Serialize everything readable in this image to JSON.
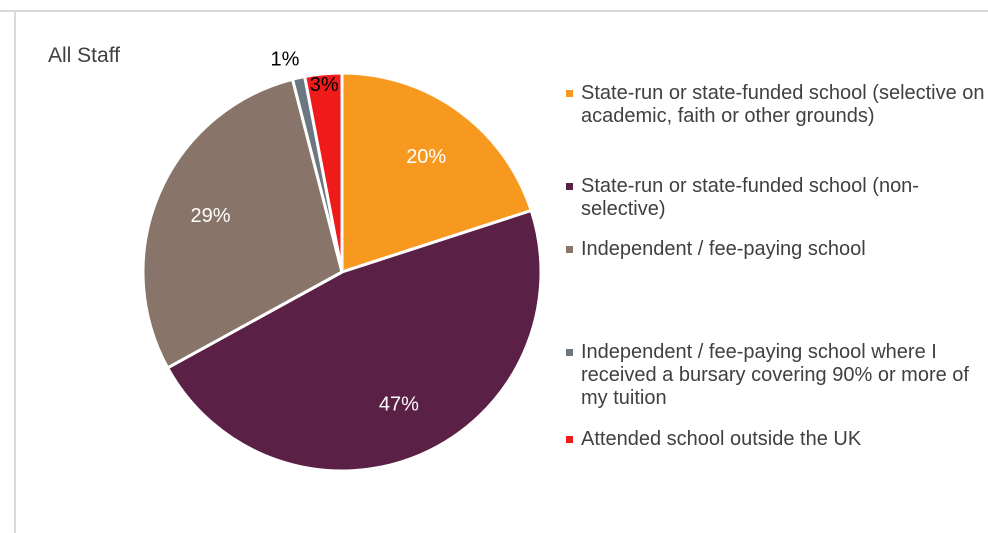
{
  "chart_data": {
    "type": "pie",
    "title": "All Staff",
    "slices": [
      {
        "label": "State-run or state-funded school (selective on academic, faith or other grounds)",
        "value": 20,
        "display": "20%",
        "color": "#f7991e"
      },
      {
        "label": "State-run or state-funded school (non-selective)",
        "value": 47,
        "display": "47%",
        "color": "#5b2046"
      },
      {
        "label": "Independent / fee-paying school",
        "value": 29,
        "display": "29%",
        "color": "#887468"
      },
      {
        "label": "Independent / fee-paying school where I received a bursary covering 90% or more of my tuition",
        "value": 1,
        "display": "1%",
        "color": "#6b7882"
      },
      {
        "label": "Attended school outside the UK",
        "value": 3,
        "display": "3%",
        "color": "#ef1b1b"
      }
    ],
    "legend_position": "right"
  }
}
